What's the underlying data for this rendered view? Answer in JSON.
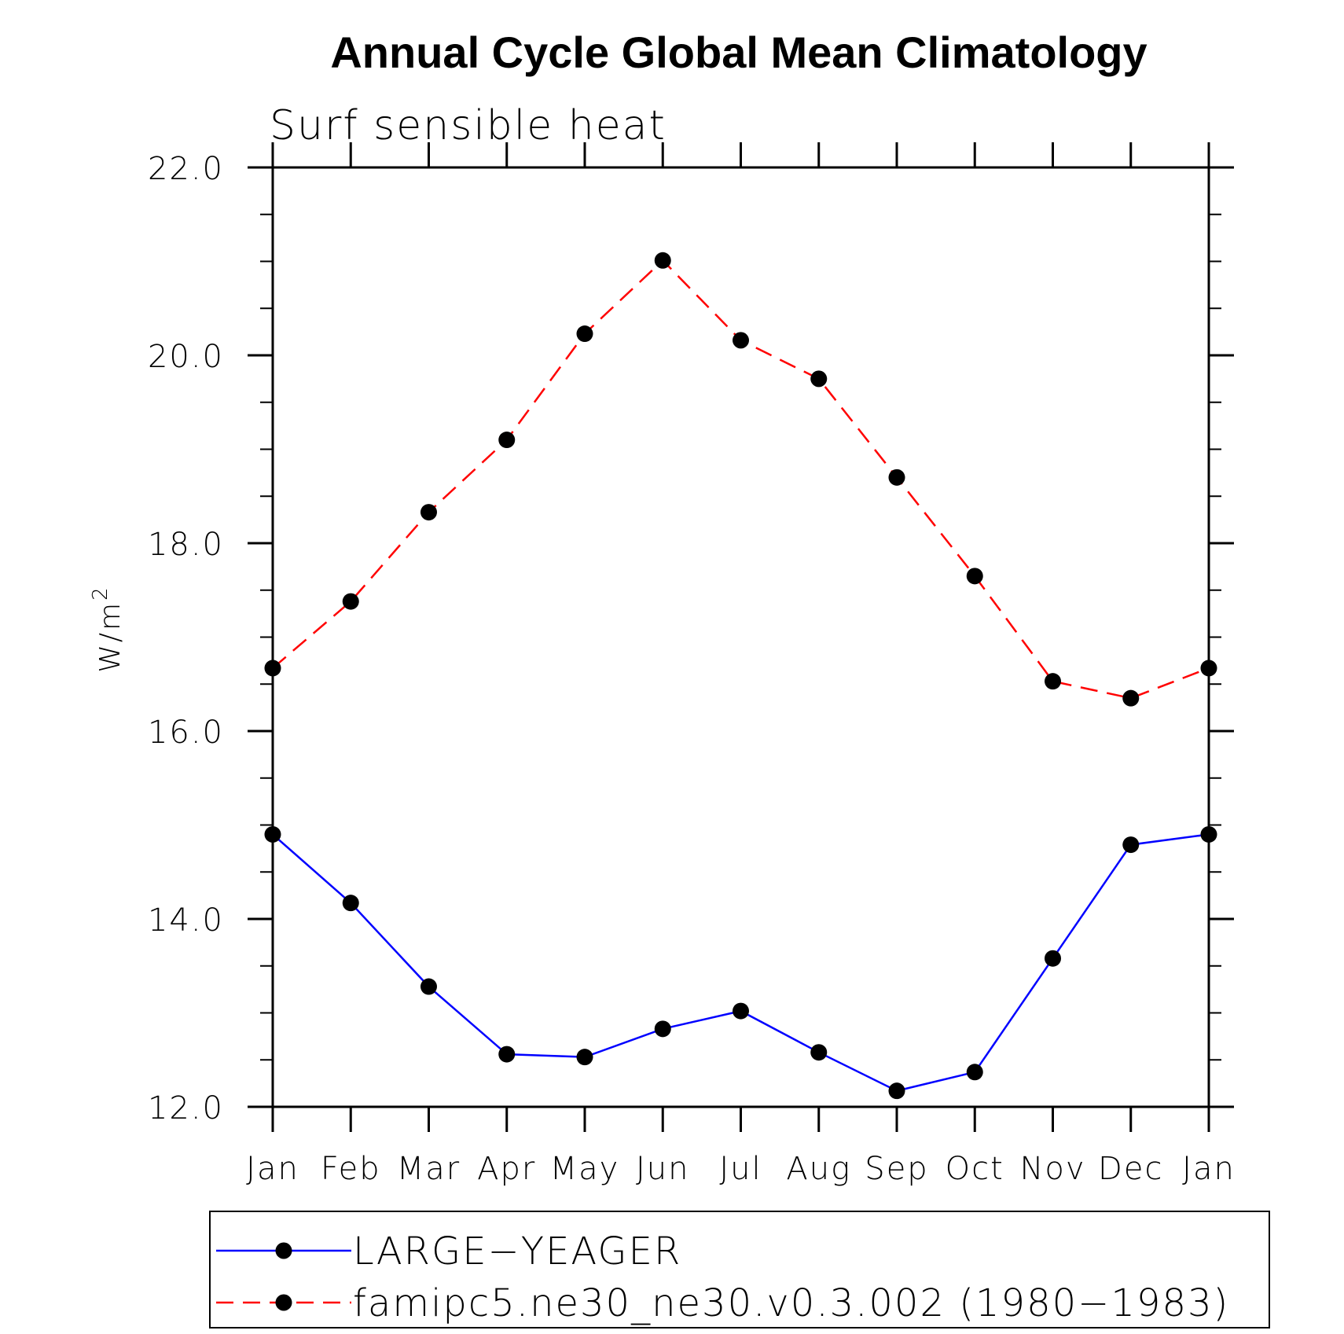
{
  "chart_data": {
    "type": "line",
    "title": "Annual Cycle Global Mean Climatology",
    "subtitle": "Surf sensible heat",
    "ylabel": "W/m",
    "ylabel_superscript": "2",
    "xlabel": "",
    "categories": [
      "Jan",
      "Feb",
      "Mar",
      "Apr",
      "May",
      "Jun",
      "Jul",
      "Aug",
      "Sep",
      "Oct",
      "Nov",
      "Dec",
      "Jan"
    ],
    "ylim": [
      12.0,
      22.0
    ],
    "yticks": [
      "12.0",
      "14.0",
      "16.0",
      "18.0",
      "20.0",
      "22.0"
    ],
    "ytick_values": [
      12,
      14,
      16,
      18,
      20,
      22
    ],
    "yminor_step": 0.5,
    "series": [
      {
        "name": "LARGE−YEAGER",
        "color": "#0000ff",
        "dash": "solid",
        "values": [
          14.9,
          14.17,
          13.28,
          12.56,
          12.53,
          12.83,
          13.02,
          12.58,
          12.17,
          12.37,
          13.58,
          14.79,
          14.9
        ]
      },
      {
        "name": "famipc5.ne30_ne30.v0.3.002 (1980−1983)",
        "color": "#ff0000",
        "dash": "dashed",
        "values": [
          16.67,
          17.38,
          18.33,
          19.1,
          20.23,
          21.01,
          20.16,
          19.75,
          18.7,
          17.65,
          16.53,
          16.35,
          16.67
        ]
      }
    ],
    "legend_position": "bottom"
  }
}
